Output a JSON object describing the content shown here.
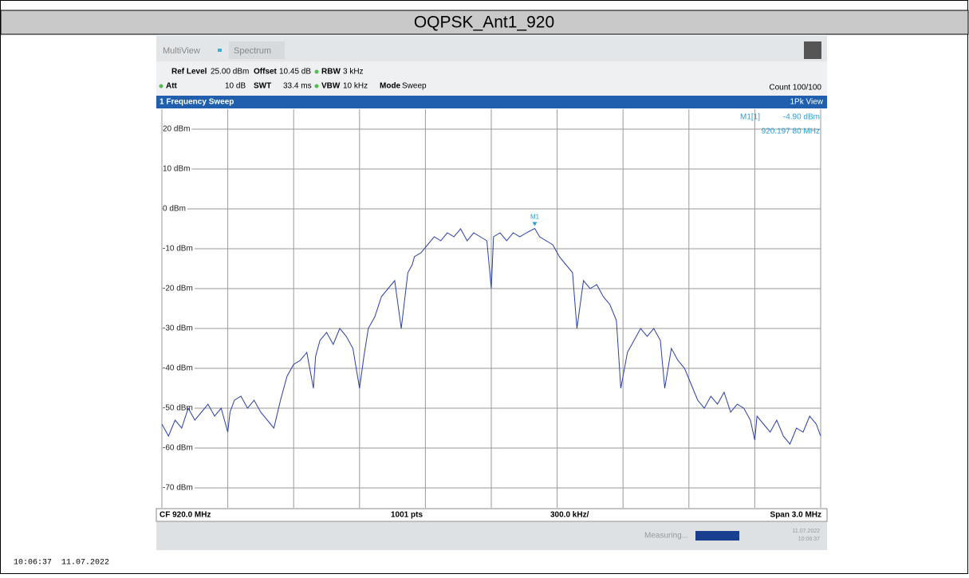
{
  "title": "OQPSK_Ant1_920",
  "header": {
    "tab_1": "MultiView",
    "tab_2": "Spectrum",
    "ref_level_label": "Ref Level",
    "ref_level": "25.00 dBm",
    "offset_label": "Offset",
    "offset": "10.45 dB",
    "rbw_label": "RBW",
    "rbw": "3 kHz",
    "att_label": "Att",
    "att": "10 dB",
    "swt_label": "SWT",
    "swt": "33.4 ms",
    "vbw_label": "VBW",
    "vbw": "10 kHz",
    "mode_label": "Mode",
    "mode": "Sweep",
    "count": "Count 100/100",
    "window": "1 Frequency Sweep",
    "view": "1Pk View"
  },
  "chart_data": {
    "type": "line",
    "color": "#2b3fa8",
    "x": [
      918.5,
      918.53,
      918.56,
      918.59,
      918.62,
      918.65,
      918.68,
      918.71,
      918.74,
      918.77,
      918.8,
      918.81,
      918.83,
      918.86,
      918.89,
      918.92,
      918.95,
      918.98,
      919.01,
      919.04,
      919.07,
      919.1,
      919.13,
      919.16,
      919.19,
      919.2,
      919.22,
      919.25,
      919.28,
      919.31,
      919.34,
      919.37,
      919.4,
      919.42,
      919.44,
      919.47,
      919.5,
      919.53,
      919.56,
      919.59,
      919.62,
      919.64,
      919.65,
      919.68,
      919.71,
      919.74,
      919.77,
      919.8,
      919.83,
      919.86,
      919.89,
      919.92,
      919.95,
      919.98,
      920.0,
      920.01,
      920.04,
      920.07,
      920.1,
      920.13,
      920.16,
      920.198,
      920.22,
      920.25,
      920.28,
      920.31,
      920.34,
      920.37,
      920.39,
      920.42,
      920.45,
      920.48,
      920.51,
      920.54,
      920.57,
      920.59,
      920.62,
      920.65,
      920.68,
      920.71,
      920.74,
      920.77,
      920.79,
      920.82,
      920.85,
      920.88,
      920.91,
      920.94,
      920.97,
      921.0,
      921.03,
      921.06,
      921.09,
      921.12,
      921.15,
      921.18,
      921.2,
      921.21,
      921.24,
      921.27,
      921.3,
      921.33,
      921.36,
      921.39,
      921.42,
      921.45,
      921.48,
      921.5
    ],
    "values": [
      -54,
      -57,
      -53,
      -55,
      -50,
      -53,
      -51,
      -49,
      -52,
      -50,
      -56,
      -51,
      -48,
      -47,
      -50,
      -48,
      -51,
      -53,
      -55,
      -48,
      -42,
      -39,
      -38,
      -36,
      -45,
      -37,
      -33,
      -31,
      -34,
      -30,
      -32,
      -35,
      -45,
      -37,
      -30,
      -27,
      -22,
      -20,
      -18,
      -30,
      -16,
      -14,
      -12,
      -11,
      -9,
      -7,
      -8,
      -6,
      -7,
      -5,
      -8,
      -6,
      -7,
      -8,
      -20,
      -7,
      -6,
      -8,
      -6,
      -7,
      -6,
      -4.9,
      -7,
      -8,
      -9,
      -12,
      -14,
      -16,
      -30,
      -18,
      -20,
      -19,
      -22,
      -24,
      -28,
      -45,
      -36,
      -33,
      -30,
      -32,
      -30,
      -33,
      -45,
      -35,
      -38,
      -40,
      -44,
      -48,
      -50,
      -47,
      -49,
      -46,
      -51,
      -49,
      -50,
      -53,
      -58,
      -52,
      -54,
      -56,
      -53,
      -57,
      -59,
      -55,
      -56,
      -52,
      -54,
      -57
    ],
    "xlim": [
      918.5,
      921.5
    ],
    "ylim": [
      -75,
      25
    ],
    "yticks": [
      {
        "value": 20,
        "label": "20 dBm"
      },
      {
        "value": 10,
        "label": "10 dBm"
      },
      {
        "value": 0,
        "label": "0 dBm"
      },
      {
        "value": -10,
        "label": "-10 dBm"
      },
      {
        "value": -20,
        "label": "-20 dBm"
      },
      {
        "value": -30,
        "label": "-30 dBm"
      },
      {
        "value": -40,
        "label": "-40 dBm"
      },
      {
        "value": -50,
        "label": "-50 dBm"
      },
      {
        "value": -60,
        "label": "-60 dBm"
      },
      {
        "value": -70,
        "label": "-70 dBm"
      }
    ],
    "grid": true,
    "marker": {
      "label": "M1",
      "x": 920.198,
      "y": -4.9,
      "readout": "M1[1]",
      "value_label": "-4.90 dBm",
      "x_label": "920.197 80 MHz"
    },
    "center": "CF 920.0 MHz",
    "points": "1001 pts",
    "per_division": "300.0 kHz/",
    "span": "Span 3.0 MHz"
  },
  "status": {
    "state": "Measuring...",
    "date": "11.07.2022",
    "time": "10:06:37"
  },
  "footer": "10:06:37  11.07.2022"
}
